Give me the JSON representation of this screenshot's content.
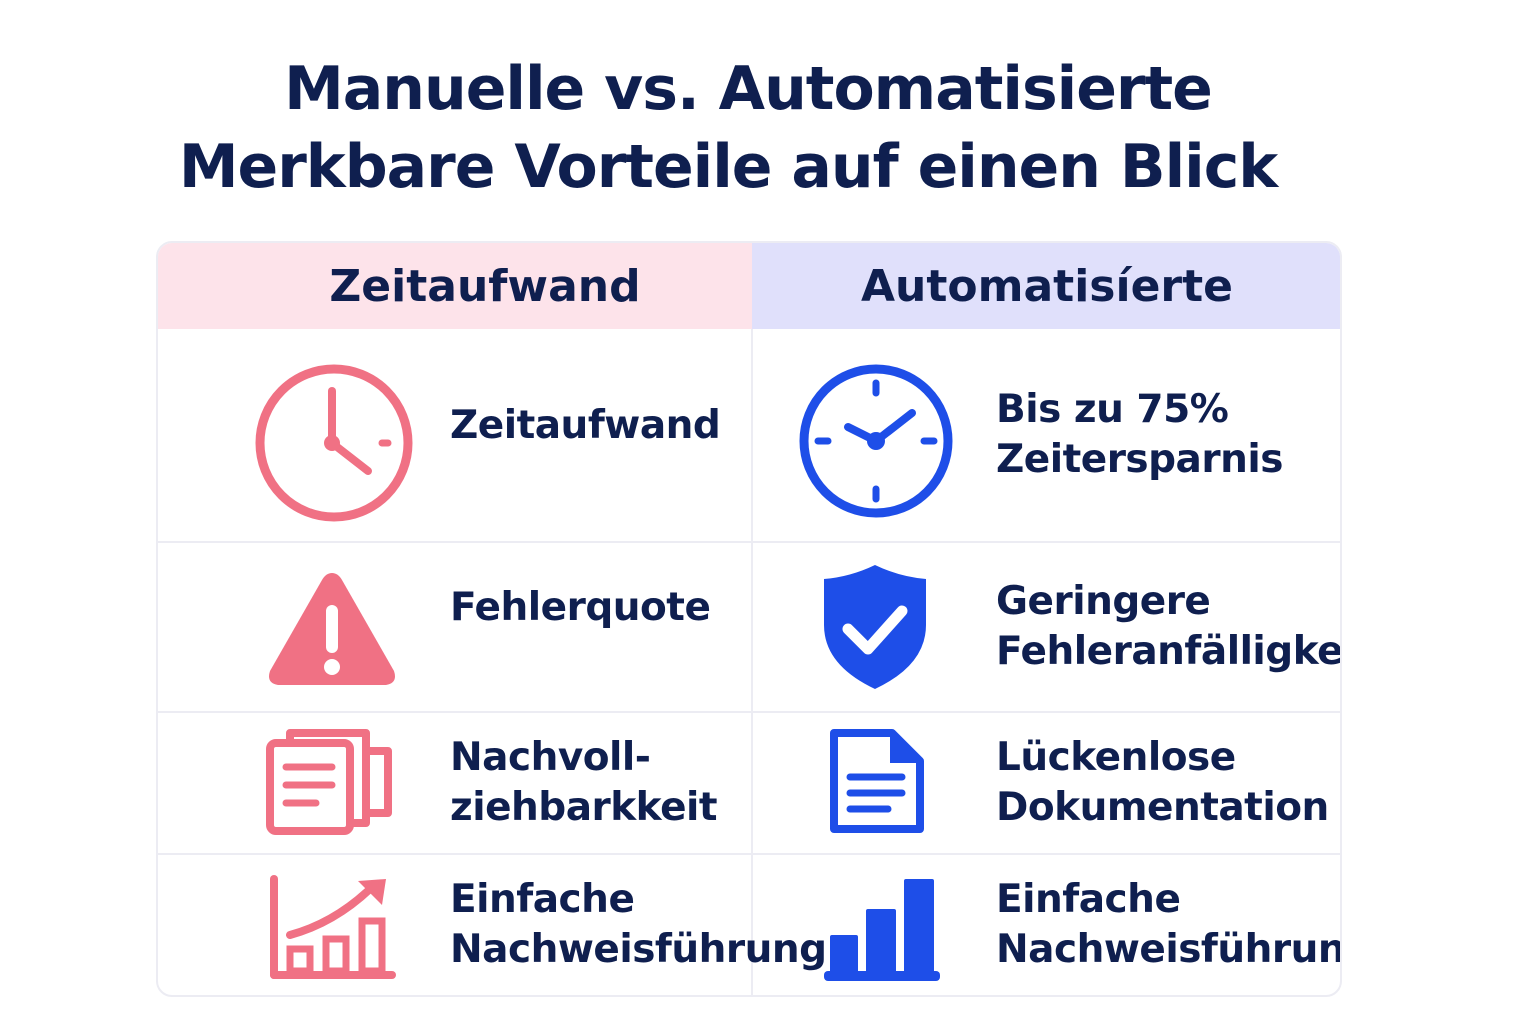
{
  "title": {
    "line1": "Manuelle vs. Automatisierte",
    "line2": "Merkbare Vorteile auf einen Blick"
  },
  "columns": {
    "left_header": "Zeitaufwand",
    "right_header": "Automatisíerte"
  },
  "colors": {
    "manual_accent": "#f07184",
    "auto_accent": "#1e4ee8",
    "text": "#0f1f4f",
    "left_header_bg": "#fde3ea",
    "right_header_bg": "#e0e0fb"
  },
  "rows": [
    {
      "manual": {
        "icon": "clock-icon",
        "label": "Zeitaufwand"
      },
      "automated": {
        "icon": "clock-icon",
        "label": "Bis zu 75%\nZeitersparnis"
      }
    },
    {
      "manual": {
        "icon": "warning-icon",
        "label": "Fehlerquote"
      },
      "automated": {
        "icon": "shield-check-icon",
        "label": "Geringere\nFehleranfälligkeit"
      }
    },
    {
      "manual": {
        "icon": "documents-icon",
        "label": "Nachvoll-\nziehbarkkeit"
      },
      "automated": {
        "icon": "document-icon",
        "label": "Lückenlose\nDokumentation"
      }
    },
    {
      "manual": {
        "icon": "chart-trend-icon",
        "label": "Einfache\nNachweisführung"
      },
      "automated": {
        "icon": "bar-chart-icon",
        "label": "Einfache\nNachweisführung"
      }
    }
  ]
}
